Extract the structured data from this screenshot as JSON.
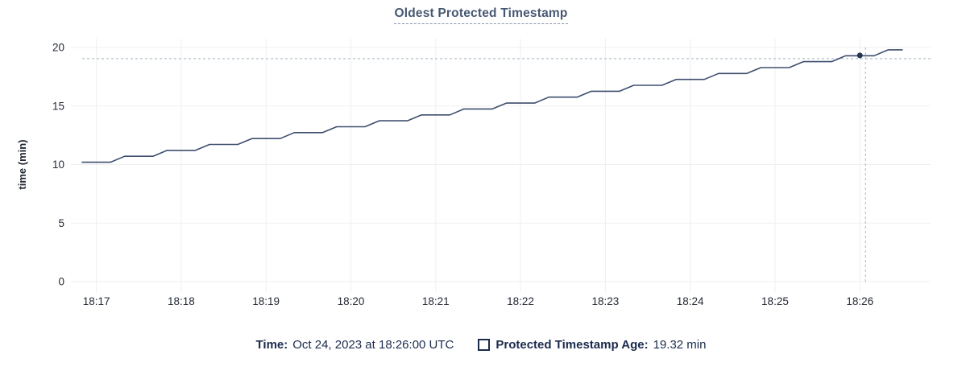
{
  "chart_data": {
    "type": "line",
    "title": "Oldest Protected Timestamp",
    "xlabel": "",
    "ylabel": "time (min)",
    "ylim": [
      0,
      20
    ],
    "y_ticks": [
      0,
      5,
      10,
      15,
      20
    ],
    "x_ticks": [
      "18:17",
      "18:18",
      "18:19",
      "18:20",
      "18:21",
      "18:22",
      "18:23",
      "18:24",
      "18:25",
      "18:26"
    ],
    "xlim": [
      "18:16:42",
      "18:26:50"
    ],
    "grid": "on",
    "legend_position": "bottom",
    "series": [
      {
        "name": "Protected Timestamp Age",
        "unit": "min",
        "points": [
          [
            "18:16:50",
            10.2
          ],
          [
            "18:17:10",
            10.2
          ],
          [
            "18:17:20",
            10.71
          ],
          [
            "18:17:40",
            10.71
          ],
          [
            "18:17:50",
            11.21
          ],
          [
            "18:18:10",
            11.21
          ],
          [
            "18:18:20",
            11.72
          ],
          [
            "18:18:40",
            11.72
          ],
          [
            "18:18:50",
            12.22
          ],
          [
            "18:19:10",
            12.22
          ],
          [
            "18:19:20",
            12.73
          ],
          [
            "18:19:40",
            12.73
          ],
          [
            "18:19:50",
            13.23
          ],
          [
            "18:20:10",
            13.23
          ],
          [
            "18:20:20",
            13.74
          ],
          [
            "18:20:40",
            13.74
          ],
          [
            "18:20:50",
            14.24
          ],
          [
            "18:21:10",
            14.24
          ],
          [
            "18:21:20",
            14.75
          ],
          [
            "18:21:40",
            14.75
          ],
          [
            "18:21:50",
            15.25
          ],
          [
            "18:22:10",
            15.25
          ],
          [
            "18:22:20",
            15.76
          ],
          [
            "18:22:40",
            15.76
          ],
          [
            "18:22:50",
            16.26
          ],
          [
            "18:23:10",
            16.26
          ],
          [
            "18:23:20",
            16.77
          ],
          [
            "18:23:40",
            16.77
          ],
          [
            "18:23:50",
            17.27
          ],
          [
            "18:24:10",
            17.27
          ],
          [
            "18:24:20",
            17.78
          ],
          [
            "18:24:40",
            17.78
          ],
          [
            "18:24:50",
            18.28
          ],
          [
            "18:25:10",
            18.28
          ],
          [
            "18:25:20",
            18.79
          ],
          [
            "18:25:40",
            18.79
          ],
          [
            "18:25:50",
            19.29
          ],
          [
            "18:26:10",
            19.29
          ],
          [
            "18:26:20",
            19.8
          ],
          [
            "18:26:30",
            19.8
          ]
        ]
      }
    ],
    "crosshair": {
      "time": "18:26:00",
      "value": 19.32
    }
  },
  "legend": {
    "time_label": "Time:",
    "time_value": "Oct 24, 2023 at 18:26:00 UTC",
    "series_label": "Protected Timestamp Age:",
    "series_value": "19.32 min"
  },
  "colors": {
    "title": "#475872",
    "legend_text": "#1b2b4d",
    "line": "#3e4e6e",
    "dot": "#26344f",
    "crosshair": "#a4b4c0",
    "grid": "#efefef"
  }
}
